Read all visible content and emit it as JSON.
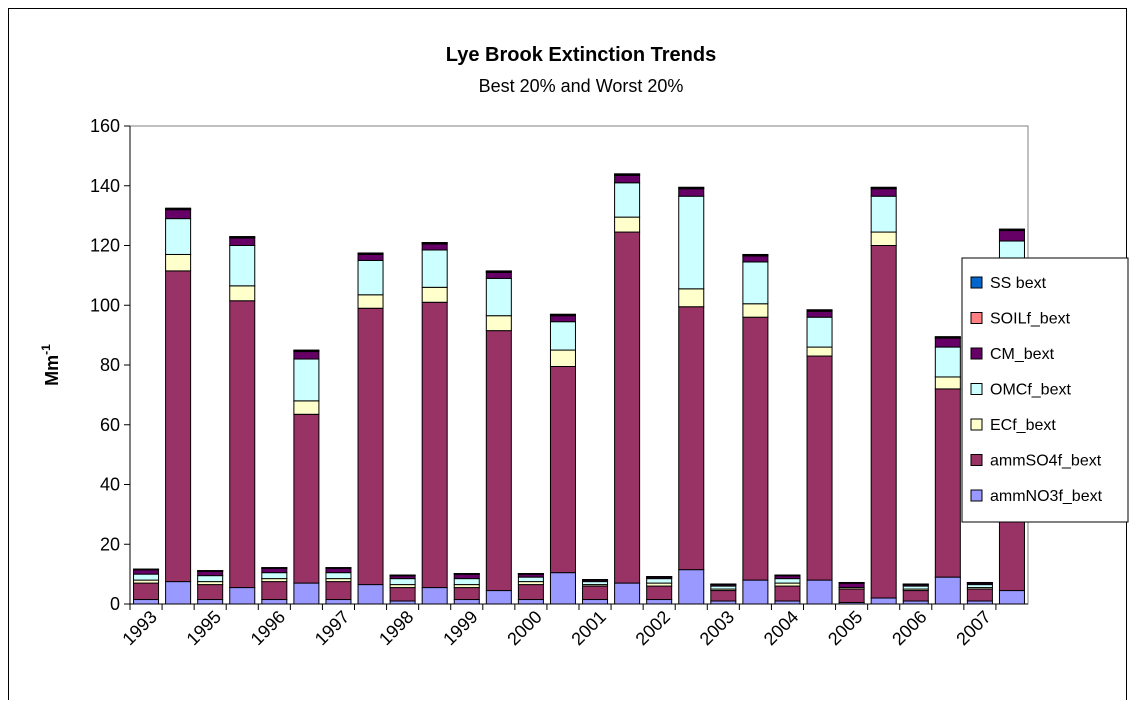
{
  "chart_data": {
    "type": "bar",
    "stacked": true,
    "title": "Lye Brook Extinction Trends",
    "subtitle": "Best 20% and Worst 20%",
    "ylabel": "Mm",
    "ylabel_sup": "-1",
    "ylim": [
      0,
      160
    ],
    "yticks": [
      0,
      20,
      40,
      60,
      80,
      100,
      120,
      140,
      160
    ],
    "grid": false,
    "legend_position": "right",
    "year_labels": [
      "1993",
      "1995",
      "1996",
      "1997",
      "1998",
      "1999",
      "2000",
      "2001",
      "2002",
      "2003",
      "2004",
      "2005",
      "2006",
      "2007"
    ],
    "categories": [
      "1993 best",
      "1993 worst",
      "1995 best",
      "1995 worst",
      "1996 best",
      "1996 worst",
      "1997 best",
      "1997 worst",
      "1998 best",
      "1998 worst",
      "1999 best",
      "1999 worst",
      "2000 best",
      "2000 worst",
      "2001 best",
      "2001 worst",
      "2002 best",
      "2002 worst",
      "2003 best",
      "2003 worst",
      "2004 best",
      "2004 worst",
      "2005 best",
      "2005 worst",
      "2006 best",
      "2006 worst",
      "2007 best",
      "2007 worst"
    ],
    "series": [
      {
        "name": "ammNO3f_bext",
        "color": "#9999ff",
        "values": [
          1.5,
          7.5,
          1.5,
          5.5,
          1.5,
          7,
          1.5,
          6.5,
          1,
          5.5,
          1.5,
          4.5,
          1.5,
          10.5,
          1.5,
          7,
          1.5,
          11.5,
          1,
          8,
          1,
          8,
          0.5,
          2,
          1,
          9,
          1,
          4.5
        ]
      },
      {
        "name": "ammSO4f_bext",
        "color": "#993366",
        "values": [
          5.5,
          104,
          5,
          96,
          6,
          56.5,
          6,
          92.5,
          4.5,
          95.5,
          4,
          87,
          5,
          69,
          4.5,
          117.5,
          4.5,
          88,
          3.5,
          88,
          5,
          75,
          4.5,
          118,
          3.5,
          63,
          4,
          97
        ]
      },
      {
        "name": "ECf_bext",
        "color": "#ffffcc",
        "values": [
          1,
          5.5,
          1,
          5,
          1,
          4.5,
          1,
          4.5,
          1,
          5,
          1,
          5,
          1,
          5.5,
          0.5,
          5,
          1,
          6,
          0.5,
          4.5,
          1,
          3,
          0.5,
          4.5,
          0.5,
          4,
          0.5,
          5
        ]
      },
      {
        "name": "OMCf_bext",
        "color": "#ccffff",
        "values": [
          2,
          12,
          2,
          13.5,
          2,
          14,
          2,
          11.5,
          2,
          12.5,
          2,
          12.5,
          1.5,
          9.5,
          1,
          11.5,
          1.5,
          31,
          1,
          14,
          1.5,
          10,
          0,
          12,
          1,
          10,
          1,
          15
        ]
      },
      {
        "name": "CM_bext",
        "color": "#660066",
        "values": [
          1.5,
          3,
          1.5,
          2.5,
          1.5,
          2.5,
          1.5,
          2,
          1,
          2,
          1.5,
          2,
          1,
          2,
          0.5,
          2.5,
          0.5,
          2.5,
          0.5,
          2,
          1,
          2,
          1.5,
          2.5,
          0.5,
          3,
          0.5,
          3.5
        ]
      },
      {
        "name": "SOILf_bext",
        "color": "#ff8080",
        "values": [
          0.1,
          0.3,
          0.1,
          0.3,
          0.1,
          0.3,
          0.1,
          0.3,
          0.1,
          0.3,
          0.1,
          0.3,
          0.1,
          0.3,
          0.1,
          0.3,
          0.1,
          0.3,
          0.1,
          0.3,
          0.1,
          0.3,
          0.1,
          0.3,
          0.1,
          0.3,
          0.1,
          0.3
        ]
      },
      {
        "name": "SS bext",
        "color": "#0066cc",
        "values": [
          0.1,
          0.2,
          0.1,
          0.2,
          0.1,
          0.2,
          0.1,
          0.2,
          0.1,
          0.2,
          0.1,
          0.2,
          0.1,
          0.2,
          0.1,
          0.2,
          0.1,
          0.2,
          0.1,
          0.2,
          0.1,
          0.2,
          0.1,
          0.2,
          0.1,
          0.2,
          0.1,
          0.2
        ]
      }
    ]
  }
}
